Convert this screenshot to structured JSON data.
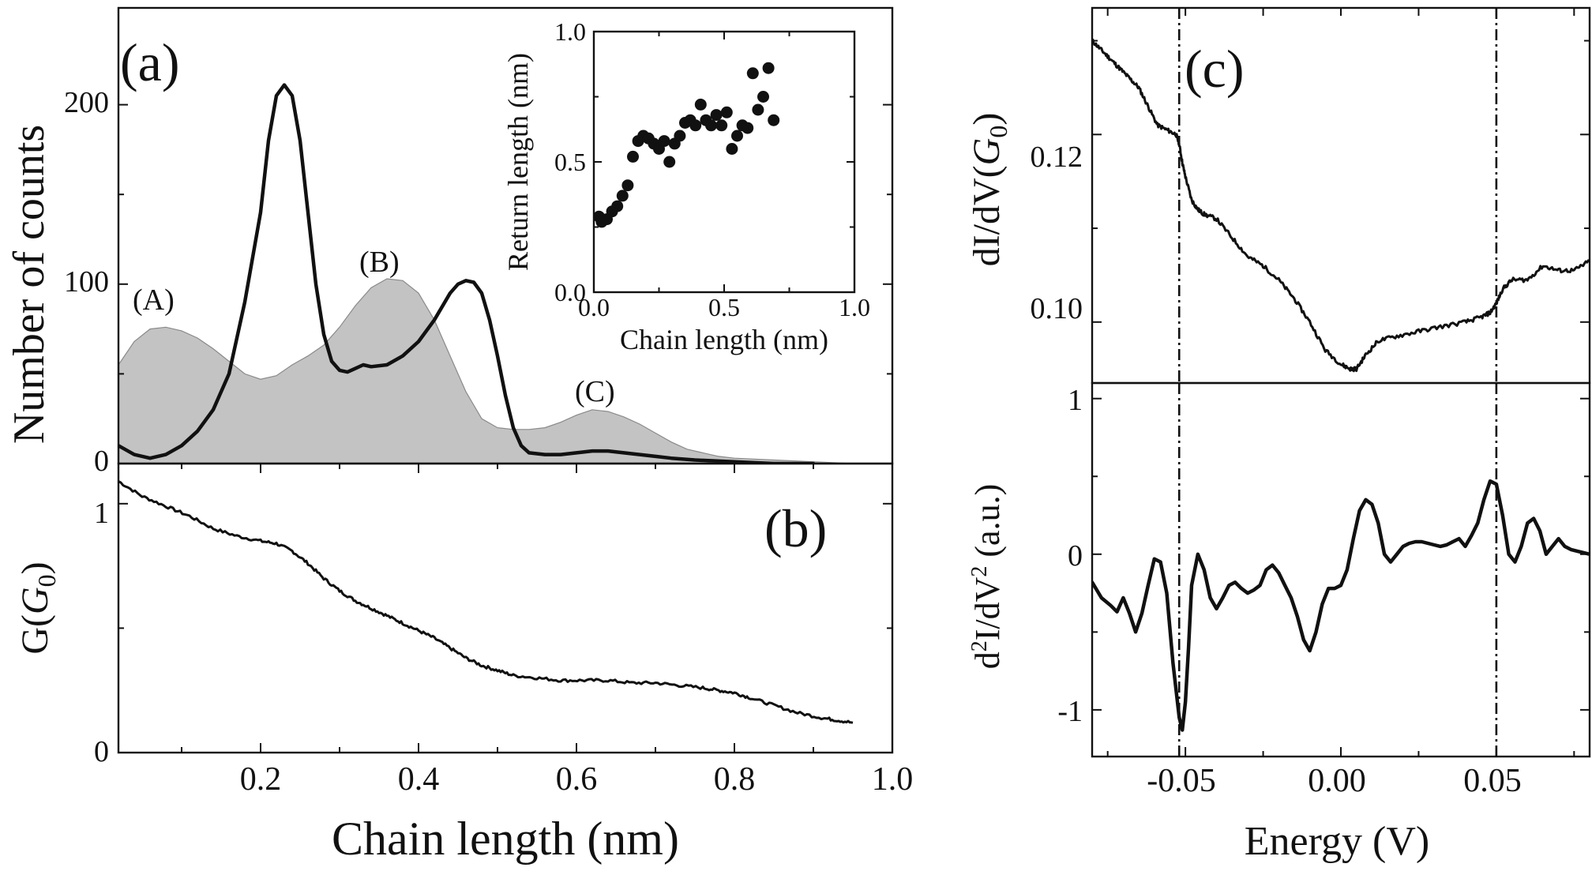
{
  "chart_data": [
    {
      "id": "a",
      "panel_label": "(a)",
      "type": "area",
      "xlim": [
        0.02,
        1.0
      ],
      "ylim": [
        0,
        250
      ],
      "ylabel": "Number of counts",
      "yticks": [
        0,
        100,
        200
      ],
      "annotations": [
        "(A)",
        "(B)",
        "(C)"
      ],
      "series": [
        {
          "style": "gray-filled",
          "x": [
            0.02,
            0.04,
            0.06,
            0.08,
            0.1,
            0.12,
            0.14,
            0.16,
            0.18,
            0.2,
            0.22,
            0.24,
            0.26,
            0.28,
            0.3,
            0.32,
            0.34,
            0.36,
            0.38,
            0.4,
            0.42,
            0.44,
            0.46,
            0.48,
            0.5,
            0.52,
            0.54,
            0.56,
            0.58,
            0.6,
            0.62,
            0.64,
            0.66,
            0.68,
            0.7,
            0.72,
            0.74,
            0.76,
            0.78,
            0.8,
            0.85,
            0.9,
            0.95
          ],
          "values": [
            55,
            68,
            75,
            76,
            74,
            70,
            64,
            57,
            50,
            47,
            49,
            55,
            60,
            66,
            76,
            88,
            98,
            103,
            102,
            95,
            80,
            60,
            40,
            25,
            20,
            19,
            19,
            20,
            23,
            27,
            30,
            29,
            26,
            22,
            17,
            12,
            8,
            6,
            4,
            3,
            2,
            1,
            0
          ]
        },
        {
          "style": "black-line",
          "x": [
            0.02,
            0.04,
            0.06,
            0.08,
            0.1,
            0.12,
            0.14,
            0.16,
            0.18,
            0.2,
            0.21,
            0.22,
            0.23,
            0.24,
            0.25,
            0.26,
            0.27,
            0.28,
            0.29,
            0.3,
            0.31,
            0.32,
            0.33,
            0.34,
            0.36,
            0.38,
            0.4,
            0.42,
            0.44,
            0.45,
            0.46,
            0.47,
            0.48,
            0.49,
            0.5,
            0.51,
            0.52,
            0.53,
            0.54,
            0.56,
            0.58,
            0.6,
            0.62,
            0.64,
            0.66,
            0.68,
            0.7,
            0.72,
            0.75,
            0.8,
            0.85,
            0.9
          ],
          "values": [
            10,
            5,
            3,
            5,
            10,
            18,
            30,
            50,
            90,
            140,
            180,
            205,
            211,
            205,
            180,
            140,
            100,
            72,
            57,
            52,
            51,
            53,
            55,
            54,
            55,
            60,
            68,
            80,
            95,
            100,
            102,
            101,
            95,
            80,
            60,
            38,
            20,
            10,
            6,
            5,
            5,
            6,
            7,
            7,
            6,
            5,
            4,
            3,
            2,
            1,
            0,
            0
          ]
        }
      ]
    },
    {
      "id": "inset",
      "type": "scatter",
      "xlabel": "Chain length (nm)",
      "ylabel": "Return length (nm)",
      "xlim": [
        0,
        1.0
      ],
      "ylim": [
        0,
        1.0
      ],
      "xticks": [
        "0.0",
        "0.5",
        "1.0"
      ],
      "yticks": [
        "0.0",
        "0.5",
        "1.0"
      ],
      "x": [
        0.02,
        0.03,
        0.05,
        0.07,
        0.09,
        0.11,
        0.13,
        0.15,
        0.17,
        0.19,
        0.21,
        0.23,
        0.25,
        0.27,
        0.29,
        0.31,
        0.33,
        0.35,
        0.37,
        0.39,
        0.41,
        0.43,
        0.45,
        0.47,
        0.49,
        0.51,
        0.53,
        0.55,
        0.57,
        0.59,
        0.61,
        0.63,
        0.65,
        0.67,
        0.69
      ],
      "y": [
        0.29,
        0.27,
        0.28,
        0.31,
        0.33,
        0.37,
        0.41,
        0.52,
        0.58,
        0.6,
        0.59,
        0.57,
        0.55,
        0.58,
        0.5,
        0.57,
        0.6,
        0.65,
        0.66,
        0.64,
        0.72,
        0.66,
        0.64,
        0.68,
        0.64,
        0.69,
        0.55,
        0.6,
        0.64,
        0.63,
        0.84,
        0.7,
        0.75,
        0.86,
        0.66
      ]
    },
    {
      "id": "b",
      "panel_label": "(b)",
      "type": "line",
      "xlabel": "Chain length (nm)",
      "ylabel_main": "G",
      "ylabel_paren_open": "(",
      "ylabel_var": "G",
      "ylabel_sub": "0",
      "ylabel_paren_close": ")",
      "xlim": [
        0.02,
        1.0
      ],
      "ylim": [
        0,
        1.12
      ],
      "xticks": [
        "0.2",
        "0.4",
        "0.6",
        "0.8",
        "1.0"
      ],
      "yticks": [
        "0",
        "1"
      ],
      "x": [
        0.02,
        0.05,
        0.08,
        0.11,
        0.14,
        0.17,
        0.2,
        0.22,
        0.24,
        0.26,
        0.28,
        0.3,
        0.32,
        0.34,
        0.36,
        0.38,
        0.4,
        0.42,
        0.44,
        0.46,
        0.48,
        0.5,
        0.52,
        0.55,
        0.58,
        0.61,
        0.64,
        0.67,
        0.7,
        0.73,
        0.76,
        0.78,
        0.8,
        0.82,
        0.85,
        0.88,
        0.91,
        0.93,
        0.95
      ],
      "values": [
        1.09,
        1.03,
        0.99,
        0.95,
        0.9,
        0.87,
        0.85,
        0.84,
        0.81,
        0.76,
        0.7,
        0.65,
        0.61,
        0.58,
        0.55,
        0.52,
        0.49,
        0.46,
        0.42,
        0.38,
        0.35,
        0.33,
        0.31,
        0.3,
        0.29,
        0.29,
        0.29,
        0.28,
        0.28,
        0.27,
        0.26,
        0.25,
        0.24,
        0.22,
        0.19,
        0.16,
        0.14,
        0.13,
        0.12
      ]
    },
    {
      "id": "c_top",
      "panel_label": "(c)",
      "type": "line",
      "ylabel_main": "dI/dV",
      "ylabel_paren_open": "(",
      "ylabel_var": "G",
      "ylabel_sub": "0",
      "ylabel_paren_close": ")",
      "xlim": [
        -0.08,
        0.08
      ],
      "ylim": [
        0.0935,
        0.1335
      ],
      "yticks": [
        "0.10",
        "0.12"
      ],
      "x": [
        -0.08,
        -0.077,
        -0.074,
        -0.071,
        -0.068,
        -0.065,
        -0.062,
        -0.059,
        -0.056,
        -0.053,
        -0.052,
        -0.051,
        -0.05,
        -0.048,
        -0.046,
        -0.044,
        -0.04,
        -0.035,
        -0.03,
        -0.025,
        -0.02,
        -0.015,
        -0.01,
        -0.005,
        0.0,
        0.003,
        0.005,
        0.008,
        0.012,
        0.018,
        0.025,
        0.032,
        0.04,
        0.045,
        0.048,
        0.05,
        0.052,
        0.055,
        0.06,
        0.065,
        0.07,
        0.075,
        0.08
      ],
      "values": [
        0.13,
        0.129,
        0.128,
        0.127,
        0.126,
        0.125,
        0.123,
        0.121,
        0.1205,
        0.12,
        0.119,
        0.117,
        0.1155,
        0.113,
        0.112,
        0.1115,
        0.111,
        0.109,
        0.107,
        0.106,
        0.1045,
        0.1025,
        0.1,
        0.097,
        0.0955,
        0.095,
        0.095,
        0.0965,
        0.098,
        0.0985,
        0.099,
        0.0995,
        0.1,
        0.1005,
        0.101,
        0.102,
        0.1035,
        0.1045,
        0.1045,
        0.106,
        0.1055,
        0.1055,
        0.1065
      ]
    },
    {
      "id": "c_bottom",
      "type": "line",
      "xlabel": "Energy (V)",
      "ylabel_pre": "d",
      "ylabel_pre_sup": "2",
      "ylabel_mid": "I/dV",
      "ylabel_mid_sup": "2",
      "ylabel_post": " (a.u.)",
      "xlim": [
        -0.08,
        0.08
      ],
      "ylim": [
        -1.3,
        1.1
      ],
      "xticks": [
        "-0.05",
        "0.00",
        "0.05"
      ],
      "xtick_values": [
        -0.05,
        0.0,
        0.05
      ],
      "yticks": [
        "-1",
        "0",
        "1"
      ],
      "dashdot_lines_x": [
        -0.052,
        0.05
      ],
      "x": [
        -0.08,
        -0.077,
        -0.074,
        -0.072,
        -0.07,
        -0.068,
        -0.066,
        -0.064,
        -0.062,
        -0.06,
        -0.058,
        -0.056,
        -0.054,
        -0.052,
        -0.051,
        -0.05,
        -0.049,
        -0.048,
        -0.046,
        -0.044,
        -0.042,
        -0.04,
        -0.038,
        -0.036,
        -0.034,
        -0.032,
        -0.03,
        -0.028,
        -0.026,
        -0.024,
        -0.022,
        -0.02,
        -0.018,
        -0.016,
        -0.014,
        -0.012,
        -0.01,
        -0.008,
        -0.006,
        -0.004,
        -0.002,
        0.0,
        0.002,
        0.004,
        0.006,
        0.008,
        0.01,
        0.012,
        0.014,
        0.016,
        0.018,
        0.02,
        0.022,
        0.024,
        0.026,
        0.028,
        0.03,
        0.032,
        0.034,
        0.036,
        0.038,
        0.04,
        0.042,
        0.044,
        0.046,
        0.048,
        0.05,
        0.052,
        0.054,
        0.056,
        0.058,
        0.06,
        0.062,
        0.064,
        0.066,
        0.068,
        0.07,
        0.072,
        0.074,
        0.076,
        0.078,
        0.08
      ],
      "values": [
        -0.18,
        -0.28,
        -0.33,
        -0.37,
        -0.28,
        -0.38,
        -0.5,
        -0.38,
        -0.2,
        -0.03,
        -0.05,
        -0.25,
        -0.7,
        -1.05,
        -1.13,
        -0.95,
        -0.6,
        -0.2,
        0.0,
        -0.1,
        -0.28,
        -0.35,
        -0.28,
        -0.2,
        -0.18,
        -0.22,
        -0.25,
        -0.23,
        -0.2,
        -0.1,
        -0.07,
        -0.12,
        -0.2,
        -0.28,
        -0.4,
        -0.55,
        -0.62,
        -0.5,
        -0.32,
        -0.22,
        -0.22,
        -0.2,
        -0.1,
        0.1,
        0.28,
        0.35,
        0.32,
        0.2,
        0.0,
        -0.05,
        0.0,
        0.05,
        0.07,
        0.08,
        0.08,
        0.07,
        0.06,
        0.05,
        0.06,
        0.08,
        0.1,
        0.05,
        0.12,
        0.2,
        0.35,
        0.47,
        0.45,
        0.25,
        0.0,
        -0.05,
        0.05,
        0.2,
        0.23,
        0.15,
        0.0,
        0.05,
        0.1,
        0.05,
        0.03,
        0.02,
        0.01,
        0.0
      ]
    }
  ],
  "axes_labels": {
    "a_ytick_0": "0",
    "a_ytick_100": "100",
    "a_ytick_200": "200",
    "shared_xlabel": "Chain length (nm)"
  }
}
